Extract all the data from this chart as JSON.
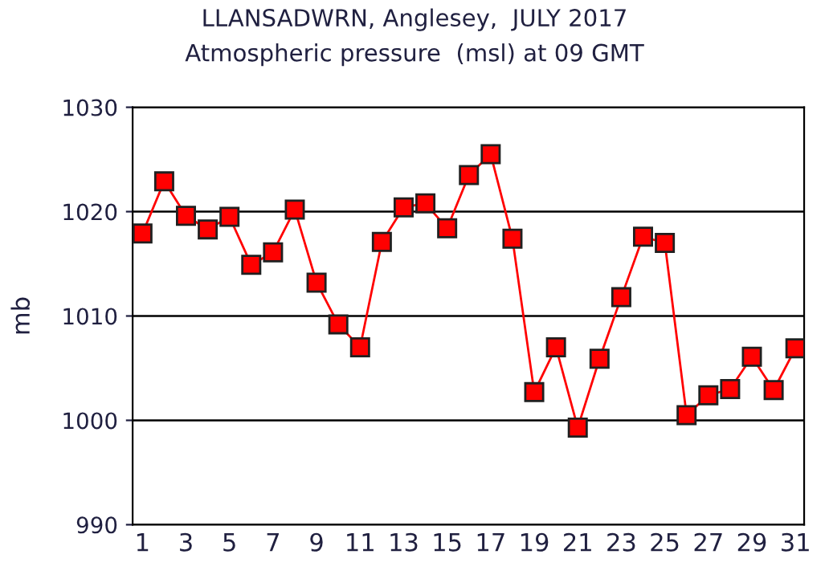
{
  "chart_data": {
    "type": "line",
    "title": "LLANSADWRN, Anglesey,  JULY 2017",
    "subtitle": "Atmospheric pressure  (msl) at 09 GMT",
    "ylabel": "mb",
    "x": [
      1,
      2,
      3,
      4,
      5,
      6,
      7,
      8,
      9,
      10,
      11,
      12,
      13,
      14,
      15,
      16,
      17,
      18,
      19,
      20,
      21,
      22,
      23,
      24,
      25,
      26,
      27,
      28,
      29,
      30,
      31
    ],
    "series": [
      {
        "color": "#ff0000",
        "values": [
          1017.9,
          1022.9,
          1019.6,
          1018.3,
          1019.5,
          1014.9,
          1016.1,
          1020.2,
          1013.2,
          1009.2,
          1007.0,
          1017.1,
          1020.4,
          1020.8,
          1018.4,
          1023.5,
          1025.5,
          1017.4,
          1002.7,
          1007.0,
          999.3,
          1005.9,
          1011.8,
          1017.6,
          1017.0,
          1000.5,
          1002.4,
          1003.0,
          1006.1,
          1002.9,
          1006.9
        ]
      }
    ],
    "xlim": [
      0.55,
      31.4
    ],
    "xticks": [
      1,
      3,
      5,
      7,
      9,
      11,
      13,
      15,
      17,
      19,
      21,
      23,
      25,
      27,
      29,
      31
    ],
    "ylim": [
      990,
      1030
    ],
    "yticks": [
      990,
      1000,
      1010,
      1020,
      1030
    ],
    "grid": "y",
    "marker": "square",
    "line_style": "solid"
  }
}
